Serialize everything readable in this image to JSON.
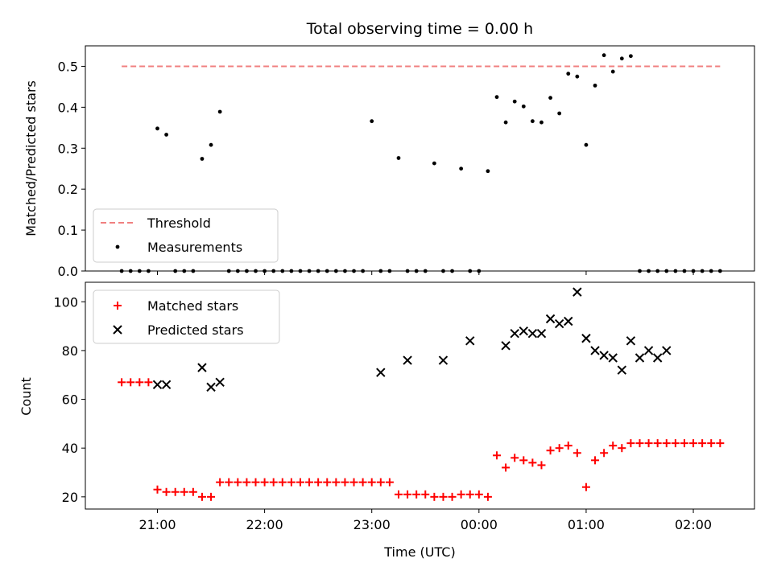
{
  "chart_data": [
    {
      "type": "scatter",
      "title": "Total observing time = 0.00 h",
      "xlabel": "",
      "ylabel": "Matched/Predicted stars",
      "ylim": [
        0,
        0.55
      ],
      "yticks": [
        0.0,
        0.1,
        0.2,
        0.3,
        0.4,
        0.5
      ],
      "ytick_labels": [
        "0.0",
        "0.1",
        "0.2",
        "0.3",
        "0.4",
        "0.5"
      ],
      "legend_position": "lower-left",
      "series": [
        {
          "name": "Threshold",
          "kind": "line",
          "style": "dashed",
          "color": "#f08080",
          "x": [
            "20:40",
            "02:15"
          ],
          "y": [
            0.5,
            0.5
          ]
        },
        {
          "name": "Measurements",
          "kind": "scatter",
          "marker": "dot",
          "color": "#000000",
          "x": [
            "20:40",
            "20:45",
            "20:50",
            "20:55",
            "21:00",
            "21:05",
            "21:10",
            "21:15",
            "21:20",
            "21:25",
            "21:30",
            "21:35",
            "21:40",
            "21:45",
            "21:50",
            "21:55",
            "22:00",
            "22:05",
            "22:10",
            "22:15",
            "22:20",
            "22:25",
            "22:30",
            "22:35",
            "22:40",
            "22:45",
            "22:50",
            "22:55",
            "23:00",
            "23:05",
            "23:10",
            "23:15",
            "23:20",
            "23:25",
            "23:30",
            "23:35",
            "23:40",
            "23:45",
            "23:50",
            "23:55",
            "00:00",
            "00:05",
            "00:10",
            "00:15",
            "00:20",
            "00:25",
            "00:30",
            "00:35",
            "00:40",
            "00:45",
            "00:50",
            "00:55",
            "01:00",
            "01:05",
            "01:10",
            "01:15",
            "01:20",
            "01:25",
            "01:30",
            "01:35",
            "01:40",
            "01:45",
            "01:50",
            "01:55",
            "02:00",
            "02:05",
            "02:10",
            "02:15"
          ],
          "y": [
            0,
            0,
            0,
            0,
            0.348,
            0.333,
            0,
            0,
            0,
            0.274,
            0.308,
            0.389,
            0,
            0,
            0,
            0,
            0,
            0,
            0,
            0,
            0,
            0,
            0,
            0,
            0,
            0,
            0,
            0,
            0.366,
            0,
            0,
            0.276,
            0,
            0,
            0,
            0.263,
            0,
            0,
            0.25,
            0,
            0,
            0.244,
            0.425,
            0.363,
            0.414,
            0.402,
            0.366,
            0.363,
            0.423,
            0.385,
            0.482,
            0.475,
            0.308,
            0.453,
            0.527,
            0.487,
            0.519,
            0.525,
            0,
            0,
            0,
            0,
            0,
            0,
            0,
            0,
            0,
            0
          ]
        }
      ]
    },
    {
      "type": "scatter",
      "title": "",
      "xlabel": "Time (UTC)",
      "ylabel": "Count",
      "ylim": [
        15,
        108
      ],
      "yticks": [
        20,
        40,
        60,
        80,
        100
      ],
      "ytick_labels": [
        "20",
        "40",
        "60",
        "80",
        "100"
      ],
      "x_tick_labels": [
        "21:00",
        "22:00",
        "23:00",
        "00:00",
        "01:00",
        "02:00"
      ],
      "legend_position": "upper-left",
      "series": [
        {
          "name": "Matched stars",
          "kind": "scatter",
          "marker": "plus",
          "color": "#ff0000",
          "x": [
            "20:40",
            "20:45",
            "20:50",
            "20:55",
            "21:00",
            "21:05",
            "21:10",
            "21:15",
            "21:20",
            "21:25",
            "21:30",
            "21:35",
            "21:40",
            "21:45",
            "21:50",
            "21:55",
            "22:00",
            "22:05",
            "22:10",
            "22:15",
            "22:20",
            "22:25",
            "22:30",
            "22:35",
            "22:40",
            "22:45",
            "22:50",
            "22:55",
            "23:00",
            "23:05",
            "23:10",
            "23:15",
            "23:20",
            "23:25",
            "23:30",
            "23:35",
            "23:40",
            "23:45",
            "23:50",
            "23:55",
            "00:00",
            "00:05",
            "00:10",
            "00:15",
            "00:20",
            "00:25",
            "00:30",
            "00:35",
            "00:40",
            "00:45",
            "00:50",
            "00:55",
            "01:00",
            "01:05",
            "01:10",
            "01:15",
            "01:20",
            "01:25",
            "01:30",
            "01:35",
            "01:40",
            "01:45",
            "01:50",
            "01:55",
            "02:00",
            "02:05",
            "02:10",
            "02:15"
          ],
          "y": [
            67,
            67,
            67,
            67,
            23,
            22,
            22,
            22,
            22,
            20,
            20,
            26,
            26,
            26,
            26,
            26,
            26,
            26,
            26,
            26,
            26,
            26,
            26,
            26,
            26,
            26,
            26,
            26,
            26,
            26,
            26,
            21,
            21,
            21,
            21,
            20,
            20,
            20,
            21,
            21,
            21,
            20,
            37,
            32,
            36,
            35,
            34,
            33,
            39,
            40,
            41,
            38,
            24,
            35,
            38,
            41,
            40,
            42,
            42,
            42,
            42,
            42,
            42,
            42,
            42,
            42,
            42,
            42
          ]
        },
        {
          "name": "Predicted stars",
          "kind": "scatter",
          "marker": "x",
          "color": "#000000",
          "x": [
            "21:00",
            "21:05",
            "21:25",
            "21:30",
            "21:35",
            "23:05",
            "23:20",
            "23:40",
            "23:55",
            "00:15",
            "00:20",
            "00:25",
            "00:30",
            "00:35",
            "00:40",
            "00:45",
            "00:50",
            "00:55",
            "01:00",
            "01:05",
            "01:10",
            "01:15",
            "01:20",
            "01:25",
            "01:30",
            "01:35",
            "01:40",
            "01:45"
          ],
          "y": [
            66,
            66,
            73,
            65,
            67,
            71,
            76,
            76,
            84,
            82,
            87,
            88,
            87,
            87,
            93,
            91,
            92,
            104,
            85,
            80,
            78,
            77,
            72,
            84,
            77,
            80,
            77,
            80
          ]
        }
      ]
    }
  ]
}
